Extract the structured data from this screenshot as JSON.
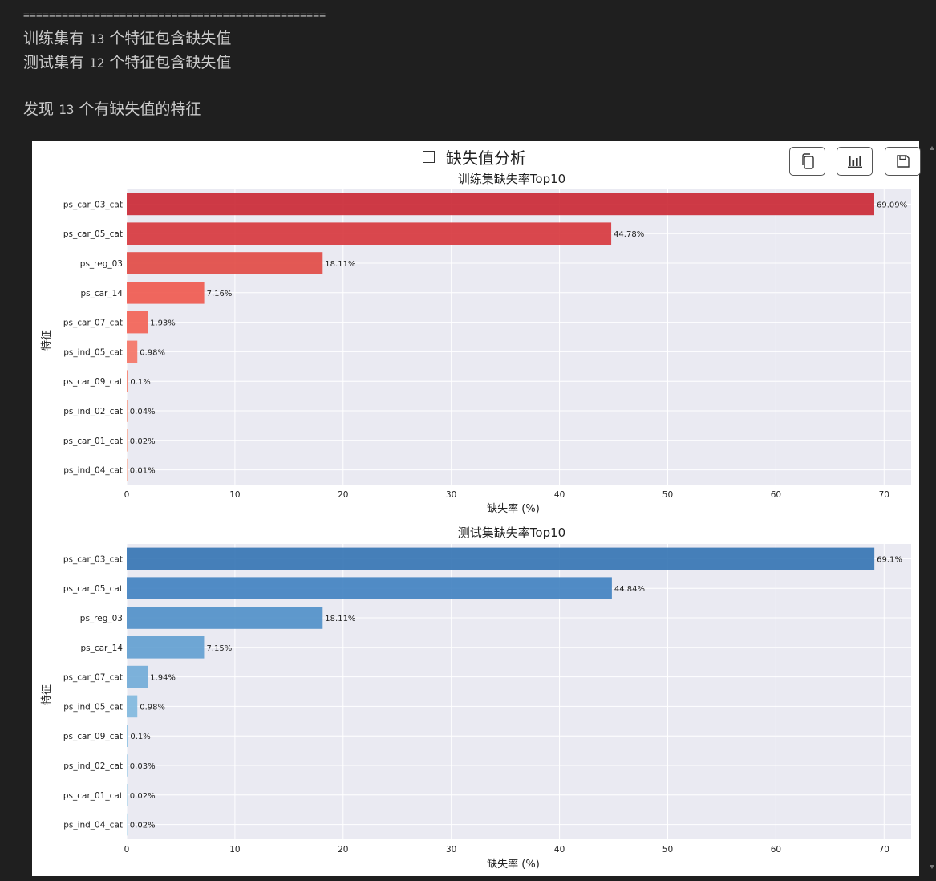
{
  "console": {
    "rule": "===============================================",
    "train_prefix": "训练集有",
    "train_count": "13",
    "train_suffix": "个特征包含缺失值",
    "test_prefix": "测试集有",
    "test_count": "12",
    "test_suffix": "个特征包含缺失值",
    "found_prefix": "发现",
    "found_count": "13",
    "found_suffix": "个有缺失值的特征"
  },
  "figure": {
    "title_icon": "checkbox-icon",
    "title": "缺失值分析",
    "toolbar": [
      {
        "name": "copy-icon"
      },
      {
        "name": "bar-chart-icon"
      },
      {
        "name": "save-icon"
      }
    ]
  },
  "colors": {
    "train_gradient": [
      "#c8202c",
      "#d63036",
      "#e0433e",
      "#ef5348",
      "#f25c4f",
      "#f57060",
      "#f77f6c",
      "#f89078",
      "#f9a088",
      "#fab19a"
    ],
    "test_gradient": [
      "#2d6fb0",
      "#3a7dbe",
      "#4a8cc6",
      "#5c9ccf",
      "#6ca9d6",
      "#7cb6dd",
      "#8dc2e3",
      "#9dcde8",
      "#aed6ec",
      "#bfdff1"
    ],
    "axes_bg": "#eaeaf2"
  },
  "chart_data": [
    {
      "type": "bar",
      "orientation": "horizontal",
      "title": "训练集缺失率Top10",
      "xlabel": "缺失率 (%)",
      "ylabel": "特征",
      "categories": [
        "ps_car_03_cat",
        "ps_car_05_cat",
        "ps_reg_03",
        "ps_car_14",
        "ps_car_07_cat",
        "ps_ind_05_cat",
        "ps_car_09_cat",
        "ps_ind_02_cat",
        "ps_car_01_cat",
        "ps_ind_04_cat"
      ],
      "values": [
        69.09,
        44.78,
        18.11,
        7.16,
        1.93,
        0.98,
        0.1,
        0.04,
        0.02,
        0.01
      ],
      "labels": [
        "69.09%",
        "44.78%",
        "18.11%",
        "7.16%",
        "1.93%",
        "0.98%",
        "0.1%",
        "0.04%",
        "0.02%",
        "0.01%"
      ],
      "xticks": [
        0,
        10,
        20,
        30,
        40,
        50,
        60,
        70
      ],
      "xlim": [
        0,
        72.5
      ],
      "grid": true
    },
    {
      "type": "bar",
      "orientation": "horizontal",
      "title": "测试集缺失率Top10",
      "xlabel": "缺失率 (%)",
      "ylabel": "特征",
      "categories": [
        "ps_car_03_cat",
        "ps_car_05_cat",
        "ps_reg_03",
        "ps_car_14",
        "ps_car_07_cat",
        "ps_ind_05_cat",
        "ps_car_09_cat",
        "ps_ind_02_cat",
        "ps_car_01_cat",
        "ps_ind_04_cat"
      ],
      "values": [
        69.1,
        44.84,
        18.11,
        7.15,
        1.94,
        0.98,
        0.1,
        0.03,
        0.02,
        0.02
      ],
      "labels": [
        "69.1%",
        "44.84%",
        "18.11%",
        "7.15%",
        "1.94%",
        "0.98%",
        "0.1%",
        "0.03%",
        "0.02%",
        "0.02%"
      ],
      "xticks": [
        0,
        10,
        20,
        30,
        40,
        50,
        60,
        70
      ],
      "xlim": [
        0,
        72.5
      ],
      "grid": true
    }
  ]
}
